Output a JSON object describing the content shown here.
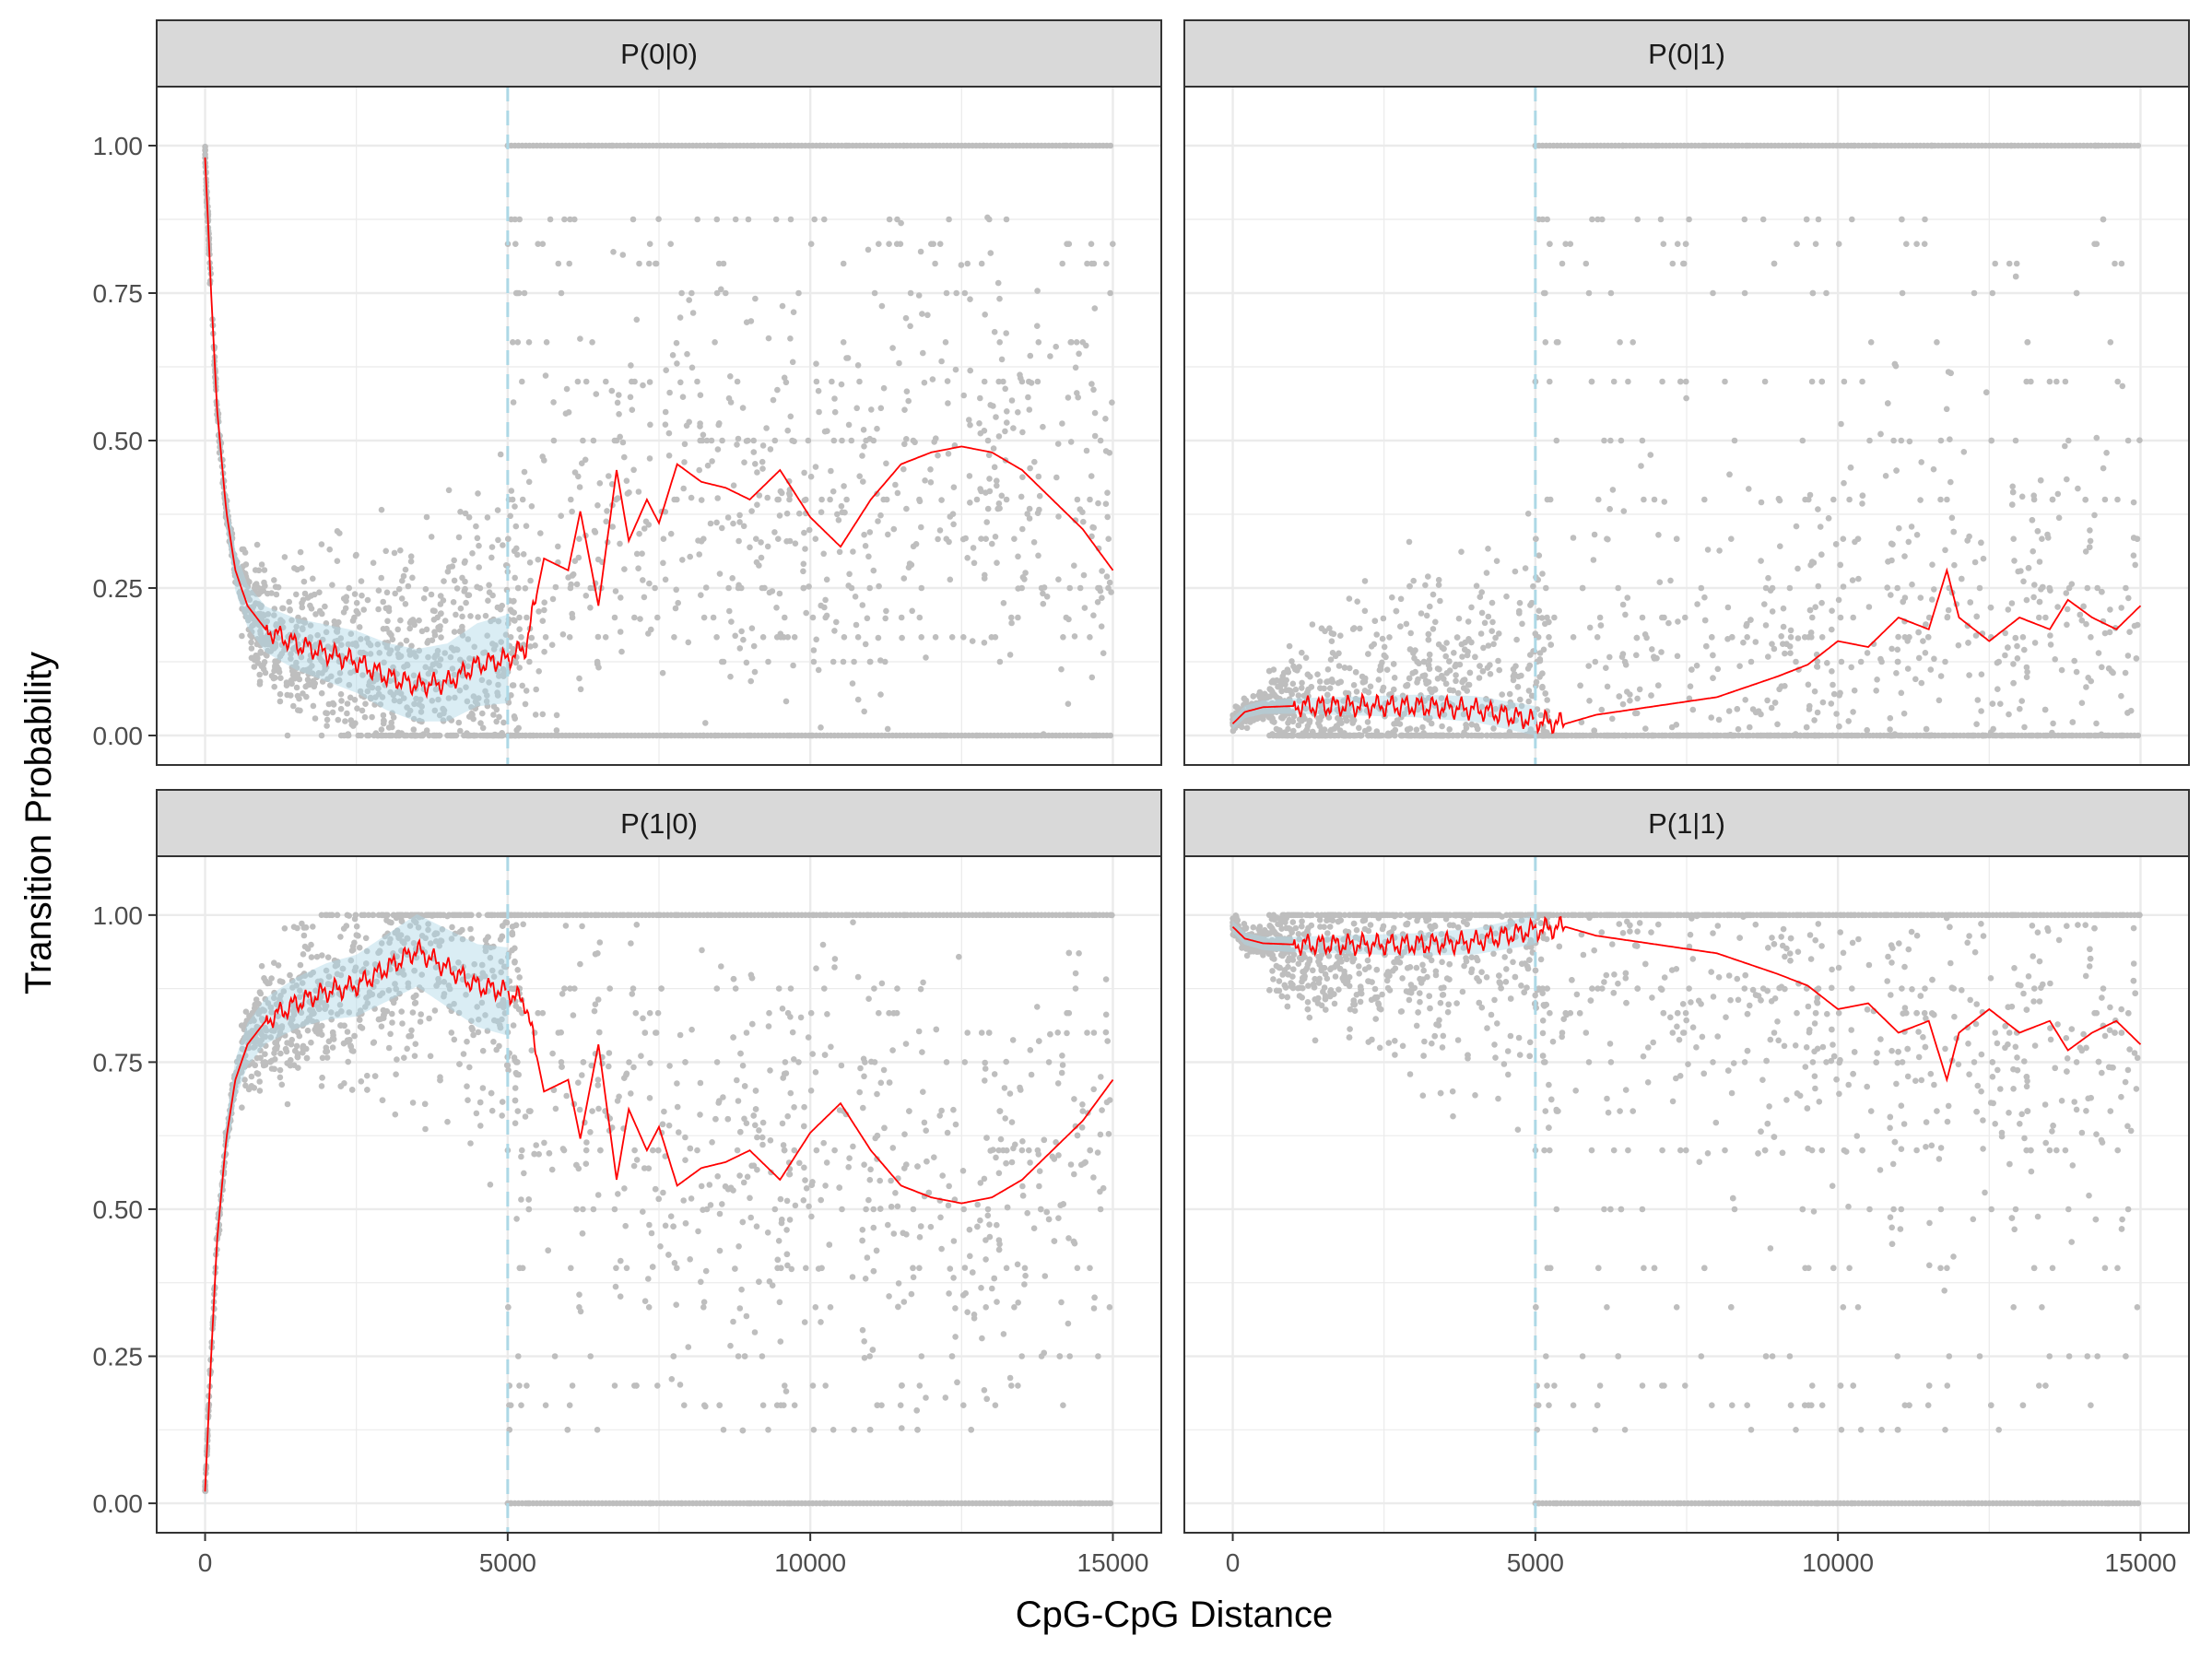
{
  "chart_data": {
    "type": "scatter",
    "layout": "facet_wrap 2x2",
    "xlabel": "CpG-CpG Distance",
    "ylabel": "Transition Probability",
    "xlim": [
      -800,
      15800
    ],
    "ylim": [
      -0.05,
      1.1
    ],
    "x_ticks": [
      0,
      5000,
      10000,
      15000
    ],
    "y_ticks": [
      0.0,
      0.25,
      0.5,
      0.75,
      1.0
    ],
    "y_tick_labels": [
      "0.00",
      "0.25",
      "0.50",
      "0.75",
      "1.00"
    ],
    "grid": true,
    "reference_line": {
      "x": 5000,
      "style": "dashed",
      "color": "#add8e6"
    },
    "colors": {
      "points": "#bebebe",
      "smooth_line": "#ff0000",
      "ribbon": "#add8e6",
      "strip_bg": "#d9d9d9",
      "grid": "#ebebeb"
    },
    "panels": [
      {
        "label": "P(0|0)",
        "x_max": 15000,
        "smooth": [
          [
            0,
            0.98
          ],
          [
            100,
            0.75
          ],
          [
            200,
            0.55
          ],
          [
            350,
            0.38
          ],
          [
            500,
            0.28
          ],
          [
            700,
            0.22
          ],
          [
            1000,
            0.18
          ],
          [
            1500,
            0.155
          ],
          [
            2000,
            0.14
          ],
          [
            2500,
            0.125
          ],
          [
            3000,
            0.1
          ],
          [
            3500,
            0.085
          ],
          [
            4000,
            0.09
          ],
          [
            4500,
            0.12
          ],
          [
            5000,
            0.13
          ],
          [
            5300,
            0.15
          ],
          [
            5600,
            0.3
          ],
          [
            6000,
            0.28
          ],
          [
            6200,
            0.38
          ],
          [
            6500,
            0.22
          ],
          [
            6800,
            0.45
          ],
          [
            7000,
            0.33
          ],
          [
            7300,
            0.4
          ],
          [
            7500,
            0.36
          ],
          [
            7800,
            0.46
          ],
          [
            8200,
            0.43
          ],
          [
            8600,
            0.42
          ],
          [
            9000,
            0.4
          ],
          [
            9500,
            0.45
          ],
          [
            10000,
            0.37
          ],
          [
            10500,
            0.32
          ],
          [
            11000,
            0.4
          ],
          [
            11500,
            0.46
          ],
          [
            12000,
            0.48
          ],
          [
            12500,
            0.49
          ],
          [
            13000,
            0.48
          ],
          [
            13500,
            0.45
          ],
          [
            14000,
            0.4
          ],
          [
            14500,
            0.35
          ],
          [
            15000,
            0.28
          ]
        ],
        "ribbon_half_width_early": 0.03
      },
      {
        "label": "P(0|1)",
        "x_max": 15000,
        "smooth": [
          [
            0,
            0.02
          ],
          [
            200,
            0.04
          ],
          [
            500,
            0.048
          ],
          [
            1000,
            0.05
          ],
          [
            2000,
            0.05
          ],
          [
            3000,
            0.05
          ],
          [
            4000,
            0.045
          ],
          [
            5000,
            0.025
          ],
          [
            5500,
            0.02
          ],
          [
            6000,
            0.035
          ],
          [
            7000,
            0.05
          ],
          [
            8000,
            0.065
          ],
          [
            9000,
            0.1
          ],
          [
            9500,
            0.12
          ],
          [
            10000,
            0.16
          ],
          [
            10500,
            0.15
          ],
          [
            11000,
            0.2
          ],
          [
            11500,
            0.18
          ],
          [
            11800,
            0.28
          ],
          [
            12000,
            0.2
          ],
          [
            12500,
            0.16
          ],
          [
            13000,
            0.2
          ],
          [
            13500,
            0.18
          ],
          [
            13800,
            0.23
          ],
          [
            14200,
            0.2
          ],
          [
            14600,
            0.18
          ],
          [
            15000,
            0.22
          ]
        ],
        "ribbon_half_width_early": 0.01
      },
      {
        "label": "P(1|0)",
        "x_max": 15000,
        "smooth": [
          [
            0,
            0.02
          ],
          [
            100,
            0.25
          ],
          [
            200,
            0.45
          ],
          [
            350,
            0.62
          ],
          [
            500,
            0.72
          ],
          [
            700,
            0.78
          ],
          [
            1000,
            0.82
          ],
          [
            1500,
            0.85
          ],
          [
            2000,
            0.87
          ],
          [
            2500,
            0.88
          ],
          [
            3000,
            0.91
          ],
          [
            3500,
            0.94
          ],
          [
            4000,
            0.91
          ],
          [
            4500,
            0.88
          ],
          [
            5000,
            0.87
          ],
          [
            5300,
            0.85
          ],
          [
            5600,
            0.7
          ],
          [
            6000,
            0.72
          ],
          [
            6200,
            0.62
          ],
          [
            6500,
            0.78
          ],
          [
            6800,
            0.55
          ],
          [
            7000,
            0.67
          ],
          [
            7300,
            0.6
          ],
          [
            7500,
            0.64
          ],
          [
            7800,
            0.54
          ],
          [
            8200,
            0.57
          ],
          [
            8600,
            0.58
          ],
          [
            9000,
            0.6
          ],
          [
            9500,
            0.55
          ],
          [
            10000,
            0.63
          ],
          [
            10500,
            0.68
          ],
          [
            11000,
            0.6
          ],
          [
            11500,
            0.54
          ],
          [
            12000,
            0.52
          ],
          [
            12500,
            0.51
          ],
          [
            13000,
            0.52
          ],
          [
            13500,
            0.55
          ],
          [
            14000,
            0.6
          ],
          [
            14500,
            0.65
          ],
          [
            15000,
            0.72
          ]
        ],
        "ribbon_half_width_early": 0.03
      },
      {
        "label": "P(1|1)",
        "x_max": 15000,
        "smooth": [
          [
            0,
            0.98
          ],
          [
            200,
            0.96
          ],
          [
            500,
            0.952
          ],
          [
            1000,
            0.95
          ],
          [
            2000,
            0.95
          ],
          [
            3000,
            0.95
          ],
          [
            4000,
            0.955
          ],
          [
            5000,
            0.975
          ],
          [
            5500,
            0.98
          ],
          [
            6000,
            0.965
          ],
          [
            7000,
            0.95
          ],
          [
            8000,
            0.935
          ],
          [
            9000,
            0.9
          ],
          [
            9500,
            0.88
          ],
          [
            10000,
            0.84
          ],
          [
            10500,
            0.85
          ],
          [
            11000,
            0.8
          ],
          [
            11500,
            0.82
          ],
          [
            11800,
            0.72
          ],
          [
            12000,
            0.8
          ],
          [
            12500,
            0.84
          ],
          [
            13000,
            0.8
          ],
          [
            13500,
            0.82
          ],
          [
            13800,
            0.77
          ],
          [
            14200,
            0.8
          ],
          [
            14600,
            0.82
          ],
          [
            15000,
            0.78
          ]
        ],
        "ribbon_half_width_early": 0.01
      }
    ]
  }
}
